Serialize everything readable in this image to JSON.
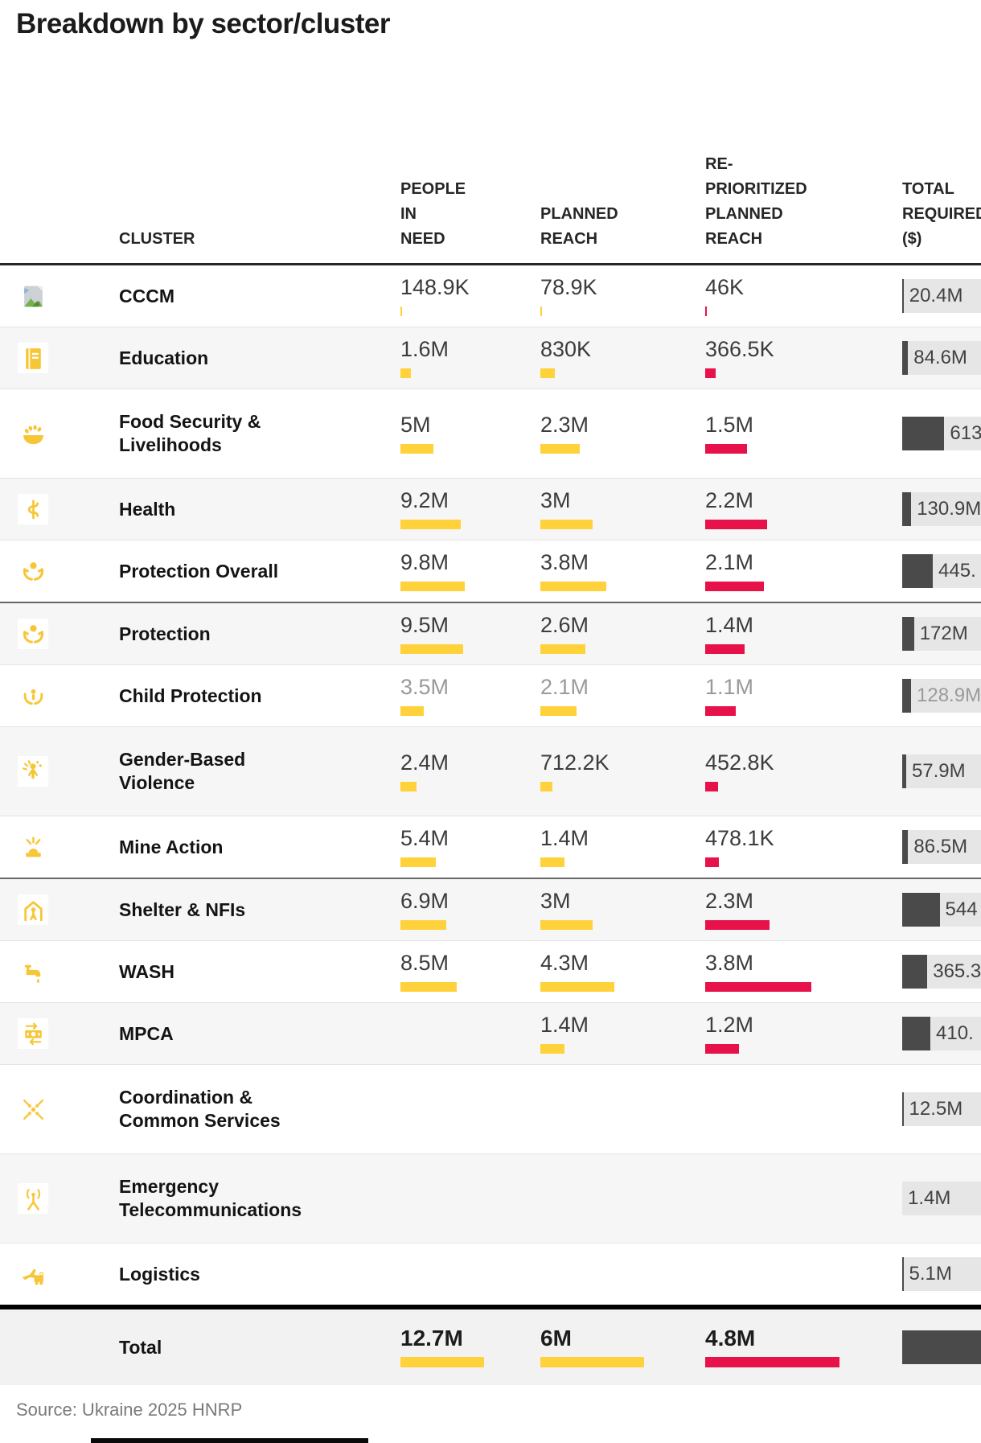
{
  "title": "Breakdown by sector/cluster",
  "source": "Source: Ukraine 2025 HNRP",
  "colors": {
    "accent_yellow": "#FFD23C",
    "accent_red": "#E8124A",
    "bar_dark": "#4A4A4A",
    "bar_track": "#E6E6E6"
  },
  "chart_data": {
    "type": "table",
    "title": "Breakdown by sector/cluster",
    "columns": [
      "CLUSTER",
      "PEOPLE IN NEED",
      "PLANNED REACH",
      "RE-PRIORITIZED PLANNED REACH",
      "TOTAL REQUIRED ($)"
    ],
    "columns_display": {
      "cluster": "CLUSTER",
      "people_in_need": "PEOPLE\nIN\nNEED",
      "planned_reach": "PLANNED\nREACH",
      "reprioritized": "RE-\nPRIORITIZED\nPLANNED\nREACH",
      "total_required": "TOTAL\nREQUIRED\n($)"
    },
    "value_units": {
      "people": "persons",
      "total_required": "USD millions"
    },
    "rows": [
      {
        "icon": "image-placeholder-icon",
        "cluster": "CCCM",
        "people_in_need": "148.9K",
        "pin_m": 0.1489,
        "planned_reach": "78.9K",
        "planned_m": 0.0789,
        "reprioritized": "46K",
        "repri_m": 0.046,
        "total_required": "20.4M",
        "total_m": 20.4
      },
      {
        "icon": "book-icon",
        "cluster": "Education",
        "people_in_need": "1.6M",
        "pin_m": 1.6,
        "planned_reach": "830K",
        "planned_m": 0.83,
        "reprioritized": "366.5K",
        "repri_m": 0.3665,
        "total_required": "84.6M",
        "total_m": 84.6
      },
      {
        "icon": "food-bowl-icon",
        "cluster": "Food Security &\nLivelihoods",
        "people_in_need": "5M",
        "pin_m": 5,
        "planned_reach": "2.3M",
        "planned_m": 2.3,
        "reprioritized": "1.5M",
        "repri_m": 1.5,
        "total_required": "613",
        "total_m": 613
      },
      {
        "icon": "health-staff-icon",
        "cluster": "Health",
        "people_in_need": "9.2M",
        "pin_m": 9.2,
        "planned_reach": "3M",
        "planned_m": 3,
        "reprioritized": "2.2M",
        "repri_m": 2.2,
        "total_required": "130.9M",
        "total_m": 130.9
      },
      {
        "icon": "hands-person-icon",
        "cluster": "Protection Overall",
        "people_in_need": "9.8M",
        "pin_m": 9.8,
        "planned_reach": "3.8M",
        "planned_m": 3.8,
        "reprioritized": "2.1M",
        "repri_m": 2.1,
        "total_required": "445.",
        "total_m": 445
      },
      {
        "icon": "hands-person-icon",
        "cluster": "Protection",
        "divider": "dark",
        "people_in_need": "9.5M",
        "pin_m": 9.5,
        "planned_reach": "2.6M",
        "planned_m": 2.6,
        "reprioritized": "1.4M",
        "repri_m": 1.4,
        "total_required": "172M",
        "total_m": 172
      },
      {
        "icon": "hands-child-icon",
        "cluster": "Child Protection",
        "muted": true,
        "people_in_need": "3.5M",
        "pin_m": 3.5,
        "planned_reach": "2.1M",
        "planned_m": 2.1,
        "reprioritized": "1.1M",
        "repri_m": 1.1,
        "total_required": "128.9M",
        "total_m": 128.9
      },
      {
        "icon": "person-rays-icon",
        "cluster": "Gender-Based\nViolence",
        "people_in_need": "2.4M",
        "pin_m": 2.4,
        "planned_reach": "712.2K",
        "planned_m": 0.7122,
        "reprioritized": "452.8K",
        "repri_m": 0.4528,
        "total_required": "57.9M",
        "total_m": 57.9
      },
      {
        "icon": "mine-hazard-icon",
        "cluster": "Mine Action",
        "people_in_need": "5.4M",
        "pin_m": 5.4,
        "planned_reach": "1.4M",
        "planned_m": 1.4,
        "reprioritized": "478.1K",
        "repri_m": 0.4781,
        "total_required": "86.5M",
        "total_m": 86.5
      },
      {
        "icon": "house-person-icon",
        "cluster": "Shelter & NFIs",
        "divider": "dark",
        "people_in_need": "6.9M",
        "pin_m": 6.9,
        "planned_reach": "3M",
        "planned_m": 3,
        "reprioritized": "2.3M",
        "repri_m": 2.3,
        "total_required": "544",
        "total_m": 544
      },
      {
        "icon": "water-tap-icon",
        "cluster": "WASH",
        "people_in_need": "8.5M",
        "pin_m": 8.5,
        "planned_reach": "4.3M",
        "planned_m": 4.3,
        "reprioritized": "3.8M",
        "repri_m": 3.8,
        "total_required": "365.3",
        "total_m": 365.3
      },
      {
        "icon": "banknote-arrows-icon",
        "cluster": "MPCA",
        "people_in_need": "",
        "pin_m": null,
        "planned_reach": "1.4M",
        "planned_m": 1.4,
        "reprioritized": "1.2M",
        "repri_m": 1.2,
        "total_required": "410.",
        "total_m": 410
      },
      {
        "icon": "converging-arrows-icon",
        "cluster": "Coordination &\nCommon Services",
        "people_in_need": "",
        "pin_m": null,
        "planned_reach": "",
        "planned_m": null,
        "reprioritized": "",
        "repri_m": null,
        "total_required": "12.5M",
        "total_m": 12.5
      },
      {
        "icon": "antenna-icon",
        "cluster": "Emergency\nTelecommunications",
        "people_in_need": "",
        "pin_m": null,
        "planned_reach": "",
        "planned_m": null,
        "reprioritized": "",
        "repri_m": null,
        "total_required": "1.4M",
        "total_m": 1.4
      },
      {
        "icon": "plane-truck-icon",
        "cluster": "Logistics",
        "people_in_need": "",
        "pin_m": null,
        "planned_reach": "",
        "planned_m": null,
        "reprioritized": "",
        "repri_m": null,
        "total_required": "5.1M",
        "total_m": 5.1
      },
      {
        "icon": null,
        "cluster": "Total",
        "divider": "black",
        "total_row": true,
        "people_in_need": "12.7M",
        "pin_m": 12.7,
        "planned_reach": "6M",
        "planned_m": 6,
        "reprioritized": "4.8M",
        "repri_m": 4.8,
        "total_required": "",
        "total_m": null
      }
    ]
  }
}
